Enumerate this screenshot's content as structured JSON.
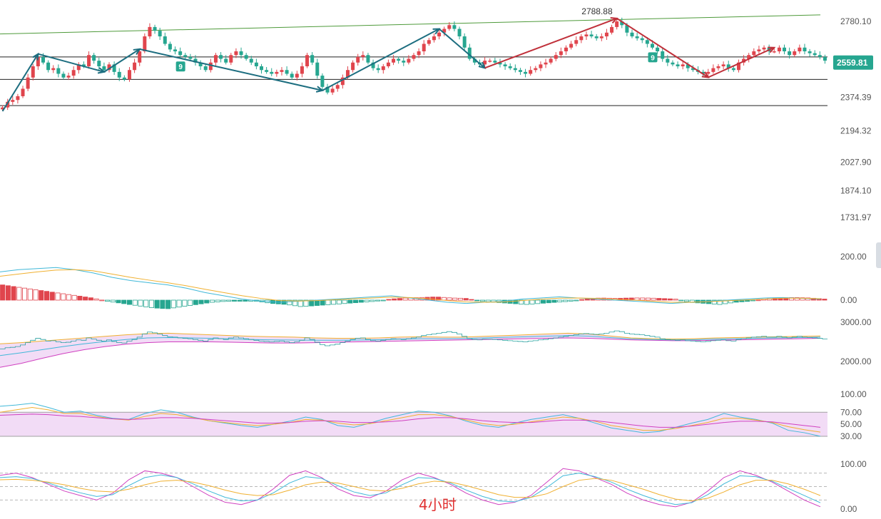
{
  "colors": {
    "up": "#e0454d",
    "down": "#26a690",
    "trend_up": "#1d6e80",
    "trend_down": "#1d6e80",
    "red_arrow": "#c0303a",
    "green_line": "#4e9a3a",
    "level_line": "#222222",
    "price_tag": "#26a690",
    "yellow": "#f0b030",
    "cyan": "#40b8d8",
    "magenta": "#d040c0",
    "pink_fill": "#f2dcf6"
  },
  "timeframe_label": "4小时",
  "price_tag": "2559.81",
  "peak_label": "2788.88",
  "nine_marker": "9",
  "chart_data": [
    {
      "type": "candlestick",
      "panel": "price",
      "yticks": [
        "2780.10",
        "2559.81",
        "2374.39",
        "2194.32",
        "2027.90",
        "1874.10",
        "1731.97"
      ],
      "ytick_values": [
        2780.1,
        2559.81,
        2374.39,
        2194.32,
        2027.9,
        1874.1,
        1731.97
      ],
      "horizontal_levels": [
        2590,
        2470,
        2330
      ],
      "trendline": {
        "x": [
          0,
          1150
        ],
        "y": [
          2713,
          2815
        ]
      },
      "close": [
        2320,
        2350,
        2360,
        2380,
        2420,
        2480,
        2540,
        2590,
        2560,
        2520,
        2530,
        2500,
        2480,
        2490,
        2520,
        2550,
        2540,
        2600,
        2570,
        2540,
        2520,
        2550,
        2510,
        2480,
        2470,
        2520,
        2560,
        2620,
        2700,
        2750,
        2730,
        2700,
        2660,
        2630,
        2620,
        2600,
        2590,
        2580,
        2560,
        2540,
        2520,
        2560,
        2600,
        2580,
        2560,
        2600,
        2620,
        2600,
        2580,
        2560,
        2540,
        2520,
        2510,
        2500,
        2510,
        2520,
        2500,
        2480,
        2500,
        2540,
        2600,
        2560,
        2490,
        2430,
        2400,
        2420,
        2440,
        2480,
        2520,
        2560,
        2590,
        2600,
        2560,
        2530,
        2520,
        2540,
        2560,
        2580,
        2570,
        2560,
        2580,
        2600,
        2620,
        2660,
        2680,
        2700,
        2720,
        2740,
        2760,
        2740,
        2700,
        2640,
        2580,
        2560,
        2550,
        2570,
        2570,
        2560,
        2550,
        2540,
        2530,
        2520,
        2510,
        2500,
        2520,
        2530,
        2550,
        2560,
        2580,
        2600,
        2620,
        2640,
        2660,
        2680,
        2700,
        2710,
        2700,
        2690,
        2700,
        2720,
        2750,
        2780,
        2760,
        2720,
        2700,
        2690,
        2680,
        2660,
        2640,
        2620,
        2580,
        2560,
        2550,
        2540,
        2550,
        2530,
        2520,
        2510,
        2500,
        2510,
        2530,
        2540,
        2550,
        2530,
        2520,
        2560,
        2580,
        2600,
        2620,
        2630,
        2640,
        2620,
        2620,
        2640,
        2620,
        2600,
        2620,
        2640,
        2620,
        2610,
        2600,
        2590,
        2570
      ],
      "annotations": [
        "2788.88",
        "9",
        "9"
      ]
    },
    {
      "type": "macd",
      "panel": "indicator-1",
      "yticks": [
        "200.00",
        "0.00"
      ],
      "ytick_values": [
        200,
        0
      ],
      "series": [
        {
          "values": [
            130,
            140,
            145,
            150,
            140,
            125,
            105,
            90,
            80,
            70,
            55,
            35,
            20,
            5,
            -5,
            -10,
            -5,
            0,
            5,
            10,
            15,
            20,
            10,
            0,
            -10,
            -15,
            -10,
            -5,
            5,
            10,
            15,
            10,
            5,
            0,
            -5,
            -10,
            -15,
            -10,
            -5,
            0,
            5,
            10,
            12,
            8,
            5
          ]
        },
        {
          "values": [
            110,
            120,
            130,
            138,
            140,
            135,
            120,
            105,
            92,
            80,
            66,
            50,
            35,
            20,
            8,
            -2,
            -4,
            -2,
            2,
            6,
            10,
            14,
            12,
            6,
            -2,
            -8,
            -10,
            -8,
            -2,
            4,
            9,
            10,
            8,
            4,
            0,
            -5,
            -10,
            -10,
            -7,
            -3,
            1,
            5,
            9,
            9,
            7
          ]
        }
      ],
      "histogram": [
        70,
        60,
        50,
        40,
        30,
        20,
        10,
        -5,
        -15,
        -25,
        -35,
        -40,
        -30,
        -20,
        -10,
        -5,
        -5,
        -5,
        -15,
        -20,
        -30,
        -25,
        -20,
        -15,
        -10,
        -5,
        5,
        10,
        12,
        15,
        10,
        8,
        -5,
        -10,
        -15,
        -20,
        -15,
        -10,
        -5,
        5,
        10,
        8,
        10,
        10,
        8,
        5,
        -10,
        -15,
        -20,
        -10,
        -5,
        5,
        10,
        12,
        10,
        5
      ]
    },
    {
      "type": "line",
      "panel": "indicator-2",
      "yticks": [
        "3000.00",
        "2000.00"
      ],
      "ytick_values": [
        3000,
        2000
      ],
      "series": [
        {
          "values": [
            2450,
            2480,
            2520,
            2560,
            2600,
            2640,
            2680,
            2710,
            2720,
            2700,
            2680,
            2660,
            2640,
            2630,
            2620,
            2600,
            2590,
            2590,
            2600,
            2620,
            2630,
            2620,
            2620,
            2640,
            2660,
            2680,
            2700,
            2720,
            2700,
            2650,
            2600,
            2580,
            2570,
            2580,
            2600,
            2610,
            2620,
            2630,
            2640,
            2650
          ]
        },
        {
          "values": [
            1850,
            1950,
            2080,
            2200,
            2300,
            2380,
            2440,
            2480,
            2500,
            2500,
            2500,
            2490,
            2480,
            2470,
            2470,
            2480,
            2490,
            2500,
            2510,
            2520,
            2530,
            2540,
            2550,
            2560,
            2570,
            2580,
            2590,
            2600,
            2590,
            2570,
            2550,
            2540,
            2530,
            2530,
            2540,
            2550,
            2560,
            2570,
            2580,
            2590
          ]
        },
        {
          "values": [
            2150,
            2220,
            2300,
            2380,
            2450,
            2510,
            2560,
            2600,
            2610,
            2600,
            2590,
            2575,
            2560,
            2550,
            2545,
            2540,
            2540,
            2545,
            2555,
            2570,
            2580,
            2580,
            2585,
            2600,
            2615,
            2630,
            2645,
            2660,
            2645,
            2610,
            2575,
            2560,
            2550,
            2555,
            2570,
            2580,
            2590,
            2600,
            2610,
            2620
          ]
        }
      ]
    },
    {
      "type": "line",
      "panel": "indicator-3",
      "yticks": [
        "100.00",
        "70.00",
        "50.00",
        "30.00"
      ],
      "ytick_values": [
        100,
        70,
        50,
        30
      ],
      "series": [
        {
          "values": [
            80,
            82,
            85,
            78,
            70,
            72,
            65,
            60,
            58,
            68,
            74,
            70,
            62,
            56,
            52,
            48,
            45,
            50,
            55,
            62,
            58,
            48,
            45,
            52,
            60,
            66,
            72,
            70,
            64,
            55,
            48,
            45,
            52,
            58,
            62,
            66,
            60,
            52,
            44,
            40,
            36,
            38,
            45,
            52,
            58,
            68,
            62,
            58,
            52,
            40,
            36,
            30
          ]
        },
        {
          "values": [
            70,
            74,
            78,
            74,
            68,
            68,
            63,
            59,
            57,
            63,
            68,
            66,
            61,
            56,
            53,
            50,
            48,
            50,
            53,
            58,
            57,
            52,
            49,
            51,
            56,
            61,
            66,
            66,
            63,
            57,
            51,
            48,
            50,
            54,
            58,
            62,
            60,
            55,
            48,
            44,
            40,
            40,
            43,
            48,
            53,
            60,
            60,
            57,
            53,
            46,
            41,
            37
          ]
        },
        {
          "values": [
            65,
            66,
            67,
            66,
            64,
            63,
            61,
            59,
            58,
            59,
            61,
            61,
            60,
            58,
            56,
            54,
            52,
            52,
            53,
            55,
            56,
            55,
            53,
            53,
            54,
            56,
            59,
            61,
            61,
            59,
            56,
            54,
            53,
            53,
            55,
            57,
            57,
            56,
            53,
            50,
            47,
            45,
            45,
            47,
            50,
            53,
            55,
            55,
            54,
            51,
            48,
            45
          ]
        }
      ]
    },
    {
      "type": "line",
      "panel": "indicator-4",
      "yticks": [
        "100.00",
        "0.00"
      ],
      "ytick_values": [
        100,
        0
      ],
      "series": [
        {
          "values": [
            75,
            80,
            70,
            55,
            40,
            30,
            20,
            35,
            65,
            85,
            80,
            70,
            50,
            30,
            15,
            10,
            20,
            45,
            75,
            85,
            70,
            45,
            30,
            25,
            40,
            65,
            80,
            70,
            55,
            35,
            20,
            10,
            15,
            30,
            60,
            90,
            85,
            70,
            55,
            35,
            20,
            10,
            5,
            15,
            40,
            70,
            85,
            75,
            60,
            40,
            20,
            5
          ]
        },
        {
          "values": [
            70,
            72,
            68,
            58,
            46,
            36,
            28,
            32,
            52,
            70,
            76,
            70,
            56,
            40,
            26,
            18,
            20,
            36,
            58,
            72,
            68,
            52,
            38,
            30,
            36,
            54,
            70,
            68,
            58,
            42,
            28,
            18,
            16,
            26,
            48,
            74,
            80,
            72,
            60,
            44,
            30,
            18,
            10,
            14,
            32,
            56,
            74,
            72,
            62,
            46,
            30,
            14
          ]
        },
        {
          "values": [
            65,
            66,
            64,
            60,
            54,
            46,
            40,
            38,
            44,
            54,
            62,
            64,
            60,
            52,
            42,
            34,
            30,
            32,
            42,
            54,
            60,
            58,
            50,
            42,
            40,
            46,
            56,
            62,
            60,
            52,
            42,
            32,
            26,
            26,
            34,
            50,
            64,
            68,
            64,
            54,
            44,
            32,
            22,
            18,
            24,
            38,
            54,
            64,
            64,
            56,
            44,
            30
          ]
        }
      ]
    }
  ]
}
